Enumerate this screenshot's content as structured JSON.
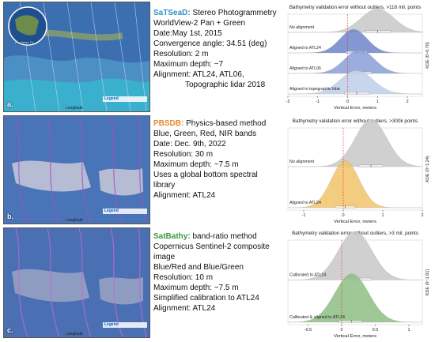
{
  "panels": [
    {
      "letter": "a.",
      "map_xlabel": "Longitude",
      "inset_label": "Key West, FL",
      "legend_title": "Legend",
      "method_name": "SaTSeaD:",
      "method_desc": " Stereo Photogrammetry",
      "name_color": "#2f8fc9",
      "lines": [
        "WorldView-2 Pan + Green",
        "Date:May 1st, 2015",
        "Convergence angle: 34.51 (deg)",
        "Resolution: 2 m",
        "Maximum depth: ~7",
        "Alignment: ATL24, ATL06,",
        "Topographic lidar 2018"
      ],
      "indent_last": true,
      "map_colors": {
        "sea": "#3b6fb0",
        "land": "#8da06a",
        "accent": "#2ec7d6"
      },
      "chart_data": {
        "type": "area",
        "title": "Bathymetry validation error without outliers, >118 mil. points",
        "xlabel": "Vertical Error, meters",
        "ylabel": "KDE (0~0.70)",
        "xlim": [
          -2,
          2.5
        ],
        "xticks": [
          -2,
          -1,
          0,
          1,
          2
        ],
        "reference_x": 0,
        "series": [
          {
            "name": "No alignment",
            "color": "#c8c8c8",
            "mean": 1.0,
            "sd": 0.55,
            "peak": 0.55,
            "box": [
              0.6,
              1.0,
              1.45
            ]
          },
          {
            "name": "Aligned to ATL24",
            "color": "#6f86cc",
            "mean": 0.2,
            "sd": 0.45,
            "peak": 0.55,
            "box": [
              -0.05,
              0.3,
              0.65
            ]
          },
          {
            "name": "Aligned to ATL06",
            "color": "#8a9fd6",
            "mean": 0.4,
            "sd": 0.5,
            "peak": 0.6,
            "box": [
              0.05,
              0.35,
              0.8
            ]
          },
          {
            "name": "Aligned to topographic lidar",
            "color": "#bfd0ea",
            "mean": 0.3,
            "sd": 0.55,
            "peak": 0.55,
            "box": [
              -0.1,
              0.3,
              0.75
            ]
          }
        ]
      }
    },
    {
      "letter": "b.",
      "map_xlabel": "Longitude",
      "inset_label": "",
      "legend_title": "Legend",
      "method_name": "PBSDB:",
      "method_desc": " Physics-based method",
      "name_color": "#e98a2c",
      "lines": [
        "Blue, Green, Red, NIR bands",
        "Date: Dec. 9th, 2022",
        "Resolution: 30 m",
        "Maximum depth: ~7.5 m",
        "Uses a global bottom spectral",
        "library",
        "Alignment: ATL24"
      ],
      "indent_last": false,
      "map_colors": {
        "sea": "#4a74b8",
        "land": "#c9c9d8",
        "accent": "#a24fc6"
      },
      "chart_data": {
        "type": "area",
        "title": "Bathymetry validation error without outliers, >300k points",
        "xlabel": "Vertical Error, meters",
        "ylabel": "KDE (0~1.24)",
        "xlim": [
          -1.4,
          2.0
        ],
        "xticks": [
          -1,
          0,
          1,
          2
        ],
        "reference_x": 0,
        "series": [
          {
            "name": "No alignment",
            "color": "#c8c8c8",
            "mean": 0.7,
            "sd": 0.4,
            "peak": 0.5,
            "box": [
              0.4,
              0.7,
              1.0
            ]
          },
          {
            "name": "Aligned to ATL24",
            "color": "#f2c46a",
            "mean": 0.05,
            "sd": 0.35,
            "peak": 0.75,
            "box": [
              -0.2,
              0.05,
              0.3
            ]
          }
        ]
      }
    },
    {
      "letter": "c.",
      "map_xlabel": "Longitude",
      "inset_label": "",
      "legend_title": "Legend",
      "method_name": "SatBathy:",
      "method_desc": " band-ratio method",
      "name_color": "#3a9a3a",
      "lines": [
        "Copernicus Sentinel-2 composite",
        "image",
        "Blue/Red and Blue/Green",
        "Resolution: 10 m",
        "Maximum depth: ~7.5 m",
        "Simplified calibration to ATL24",
        "Alignment: ATL24"
      ],
      "indent_last": false,
      "map_colors": {
        "sea": "#4a6fb3",
        "land": "#9aa4c4",
        "accent": "#c06ad0"
      },
      "chart_data": {
        "type": "area",
        "title": "Bathymetry validation error without outliers, >3 mil. points",
        "xlabel": "Vertical Error, meters",
        "ylabel": "KDE (0~1.61)",
        "xlim": [
          -0.8,
          1.2
        ],
        "xticks": [
          -0.5,
          0.0,
          0.5,
          1.0
        ],
        "reference_x": 0,
        "series": [
          {
            "name": "Calibrated to ATL24",
            "color": "#c8c8c8",
            "mean": 0.2,
            "sd": 0.25,
            "peak": 0.55,
            "box": [
              0.05,
              0.25,
              0.45
            ]
          },
          {
            "name": "Calibrated & aligned to ATL24",
            "color": "#8fbf85",
            "mean": 0.15,
            "sd": 0.25,
            "peak": 0.75,
            "box": [
              -0.05,
              0.15,
              0.3
            ]
          }
        ]
      }
    }
  ]
}
